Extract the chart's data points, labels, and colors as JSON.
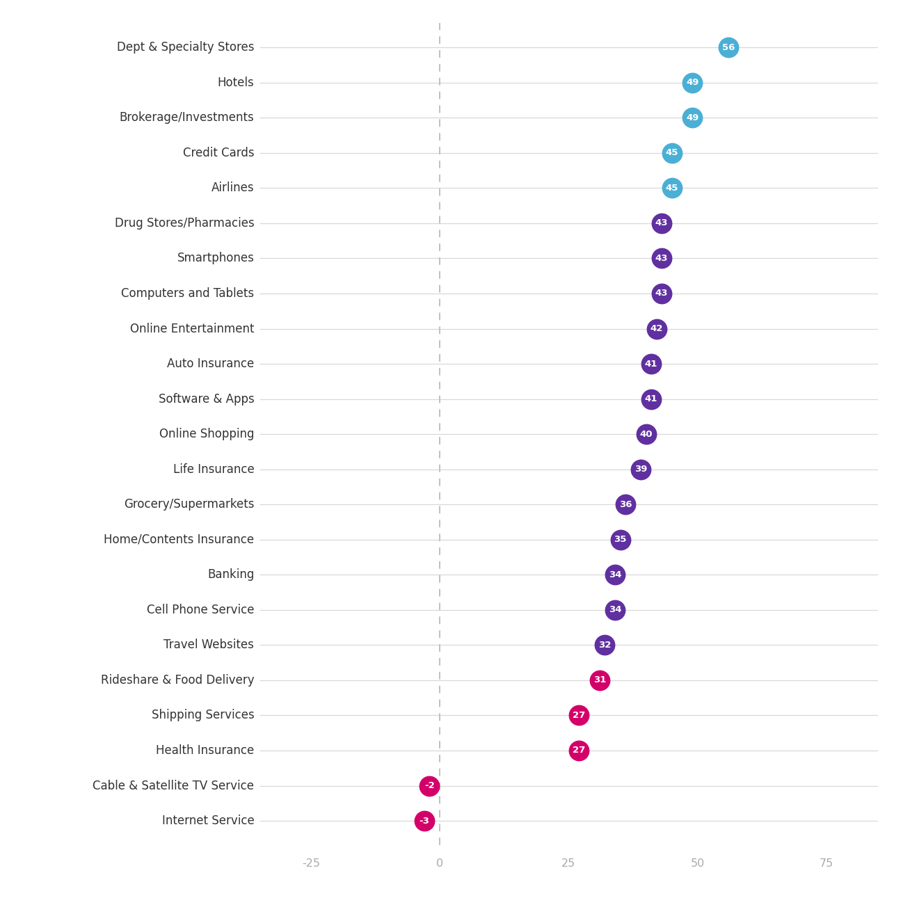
{
  "categories": [
    "Dept & Specialty Stores",
    "Hotels",
    "Brokerage/Investments",
    "Credit Cards",
    "Airlines",
    "Drug Stores/Pharmacies",
    "Smartphones",
    "Computers and Tablets",
    "Online Entertainment",
    "Auto Insurance",
    "Software & Apps",
    "Online Shopping",
    "Life Insurance",
    "Grocery/Supermarkets",
    "Home/Contents Insurance",
    "Banking",
    "Cell Phone Service",
    "Travel Websites",
    "Rideshare & Food Delivery",
    "Shipping Services",
    "Health Insurance",
    "Cable & Satellite TV Service",
    "Internet Service"
  ],
  "values": [
    56,
    49,
    49,
    45,
    45,
    43,
    43,
    43,
    42,
    41,
    41,
    40,
    39,
    36,
    35,
    34,
    34,
    32,
    31,
    27,
    27,
    -2,
    -3
  ],
  "dot_colors": [
    "#4BAFD5",
    "#4BAFD5",
    "#4BAFD5",
    "#4BAFD5",
    "#4BAFD5",
    "#6030A0",
    "#6030A0",
    "#6030A0",
    "#6030A0",
    "#6030A0",
    "#6030A0",
    "#6030A0",
    "#6030A0",
    "#6030A0",
    "#6030A0",
    "#6030A0",
    "#6030A0",
    "#6030A0",
    "#D4006A",
    "#D4006A",
    "#D4006A",
    "#D4006A",
    "#D4006A"
  ],
  "xlim": [
    -35,
    85
  ],
  "xticks": [
    -25,
    0,
    25,
    50,
    75
  ],
  "background_color": "#FFFFFF",
  "line_color": "#D8D8D8",
  "dashed_line_color": "#BBBBBB",
  "dot_size": 420,
  "label_fontsize": 12,
  "tick_fontsize": 11.5,
  "tick_color": "#AAAAAA",
  "text_color": "#333333",
  "value_fontsize": 9.5
}
